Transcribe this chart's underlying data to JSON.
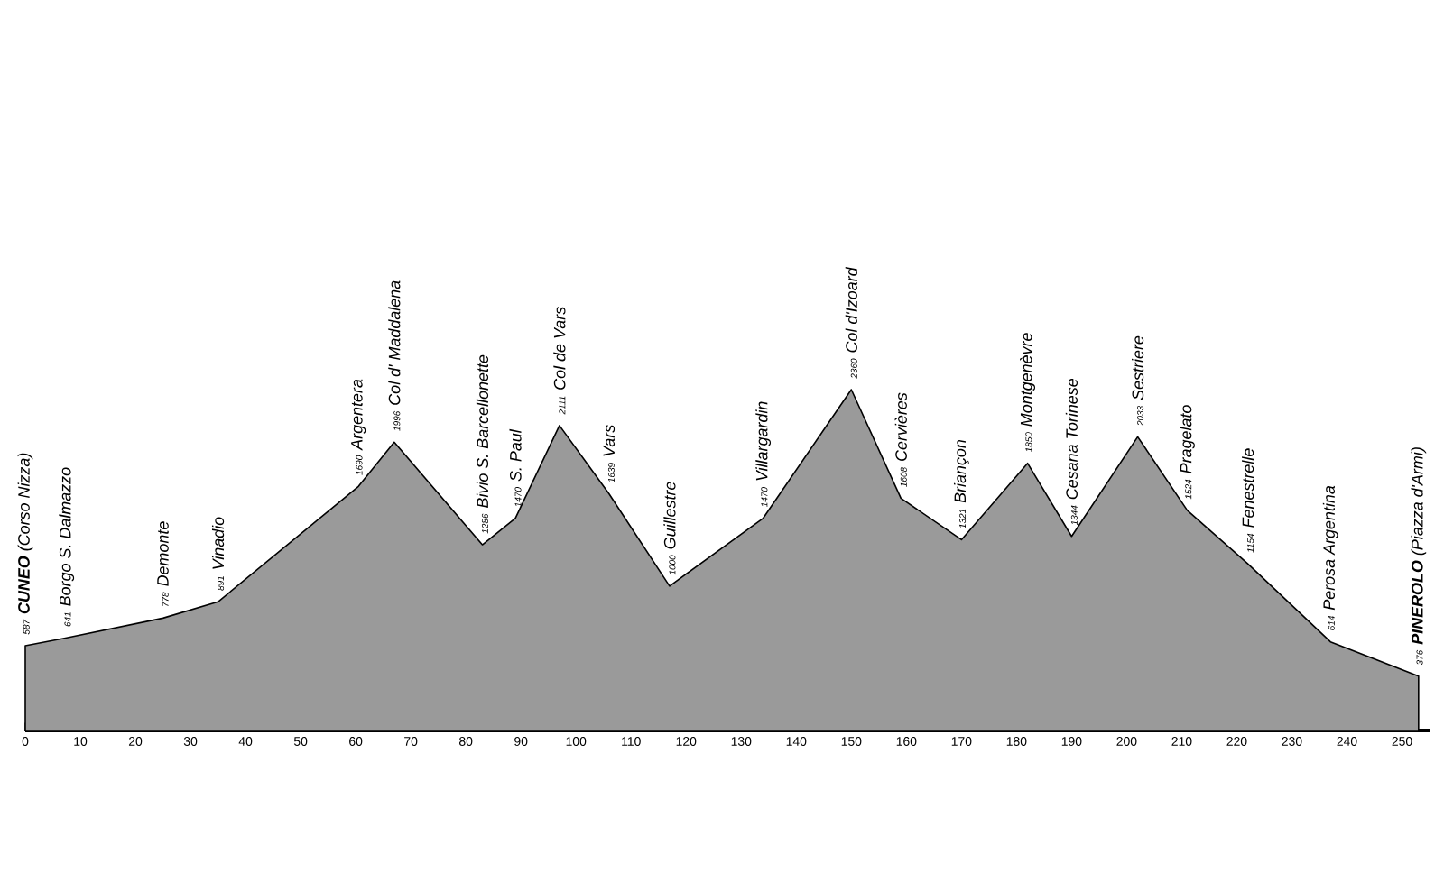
{
  "chart_data": {
    "type": "area",
    "color": "#9a9a9a",
    "x": [
      0,
      7.5,
      25,
      35,
      60.5,
      67,
      83,
      89,
      97,
      106,
      117,
      134,
      150,
      159,
      170,
      182,
      190,
      202,
      211,
      222,
      237,
      253
    ],
    "values": [
      587,
      641,
      778,
      891,
      1690,
      1996,
      1286,
      1470,
      2111,
      1639,
      1000,
      1470,
      2360,
      1608,
      1321,
      1850,
      1344,
      2033,
      1524,
      1154,
      614,
      376
    ],
    "data_labels": true,
    "annotations": [
      {
        "text": "**CUNEO** (Corso Nizza)",
        "x": 0,
        "y": 587
      },
      {
        "text": "Borgo S. Dalmazzo",
        "x": 7.5,
        "y": 641
      },
      {
        "text": "Demonte",
        "x": 25,
        "y": 778
      },
      {
        "text": "Vinadio",
        "x": 35,
        "y": 891
      },
      {
        "text": "Argentera",
        "x": 60.5,
        "y": 1690
      },
      {
        "text": "Col d' Maddalena",
        "x": 67,
        "y": 1996
      },
      {
        "text": "Bivio S. Barcellonette",
        "x": 83,
        "y": 1286
      },
      {
        "text": "S. Paul",
        "x": 89,
        "y": 1470
      },
      {
        "text": "Col de Vars",
        "x": 97,
        "y": 2111
      },
      {
        "text": "Vars",
        "x": 106,
        "y": 1639
      },
      {
        "text": "Guillestre",
        "x": 117,
        "y": 1000
      },
      {
        "text": "Villargardin",
        "x": 134,
        "y": 1470
      },
      {
        "text": "Col d'Izoard",
        "x": 150,
        "y": 2360
      },
      {
        "text": "Cervières",
        "x": 159,
        "y": 1608
      },
      {
        "text": "Briançon",
        "x": 170,
        "y": 1321
      },
      {
        "text": "Montgenèvre",
        "x": 182,
        "y": 1850
      },
      {
        "text": "Cesana Torinese",
        "x": 190,
        "y": 1344
      },
      {
        "text": "Sestriere",
        "x": 202,
        "y": 2033
      },
      {
        "text": "Pragelato",
        "x": 211,
        "y": 1524
      },
      {
        "text": "Fenestrelle",
        "x": 222,
        "y": 1154
      },
      {
        "text": "Perosa Argentina",
        "x": 237,
        "y": 614
      },
      {
        "text": "**PINEROLO** (Piazza d'Armi)",
        "x": 253,
        "y": 376
      }
    ],
    "xlim": [
      0,
      255
    ],
    "xticks": [
      0,
      10,
      20,
      30,
      40,
      50,
      60,
      70,
      80,
      90,
      100,
      110,
      120,
      130,
      140,
      150,
      160,
      170,
      180,
      190,
      200,
      210,
      220,
      230,
      240,
      250
    ],
    "tick_labels": "x"
  }
}
